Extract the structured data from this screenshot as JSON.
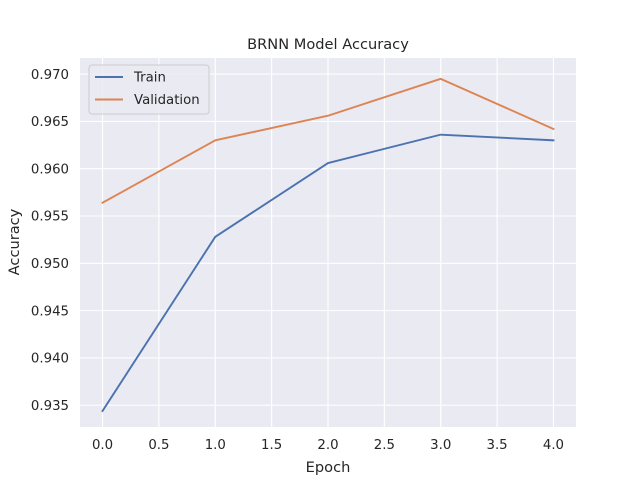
{
  "chart_data": {
    "type": "line",
    "title": "BRNN Model Accuracy",
    "xlabel": "Epoch",
    "ylabel": "Accuracy",
    "x": [
      0,
      1,
      2,
      3,
      4
    ],
    "series": [
      {
        "name": "Train",
        "color": "#4c72b0",
        "values": [
          0.9344,
          0.9528,
          0.9606,
          0.9636,
          0.963
        ]
      },
      {
        "name": "Validation",
        "color": "#dd8452",
        "values": [
          0.9564,
          0.963,
          0.9656,
          0.9695,
          0.9642
        ]
      }
    ],
    "xlim": [
      -0.2,
      4.2
    ],
    "ylim": [
      0.9327,
      0.9717
    ],
    "xticks": [
      "0.0",
      "0.5",
      "1.0",
      "1.5",
      "2.0",
      "2.5",
      "3.0",
      "3.5",
      "4.0"
    ],
    "xtick_values": [
      0,
      0.5,
      1,
      1.5,
      2,
      2.5,
      3,
      3.5,
      4
    ],
    "yticks": [
      "0.935",
      "0.940",
      "0.945",
      "0.950",
      "0.955",
      "0.960",
      "0.965",
      "0.970"
    ],
    "ytick_values": [
      0.935,
      0.94,
      0.945,
      0.95,
      0.955,
      0.96,
      0.965,
      0.97
    ],
    "grid": true,
    "legend_position": "top-left",
    "plot_background": "#eaeaf2",
    "grid_color": "#ffffff"
  }
}
